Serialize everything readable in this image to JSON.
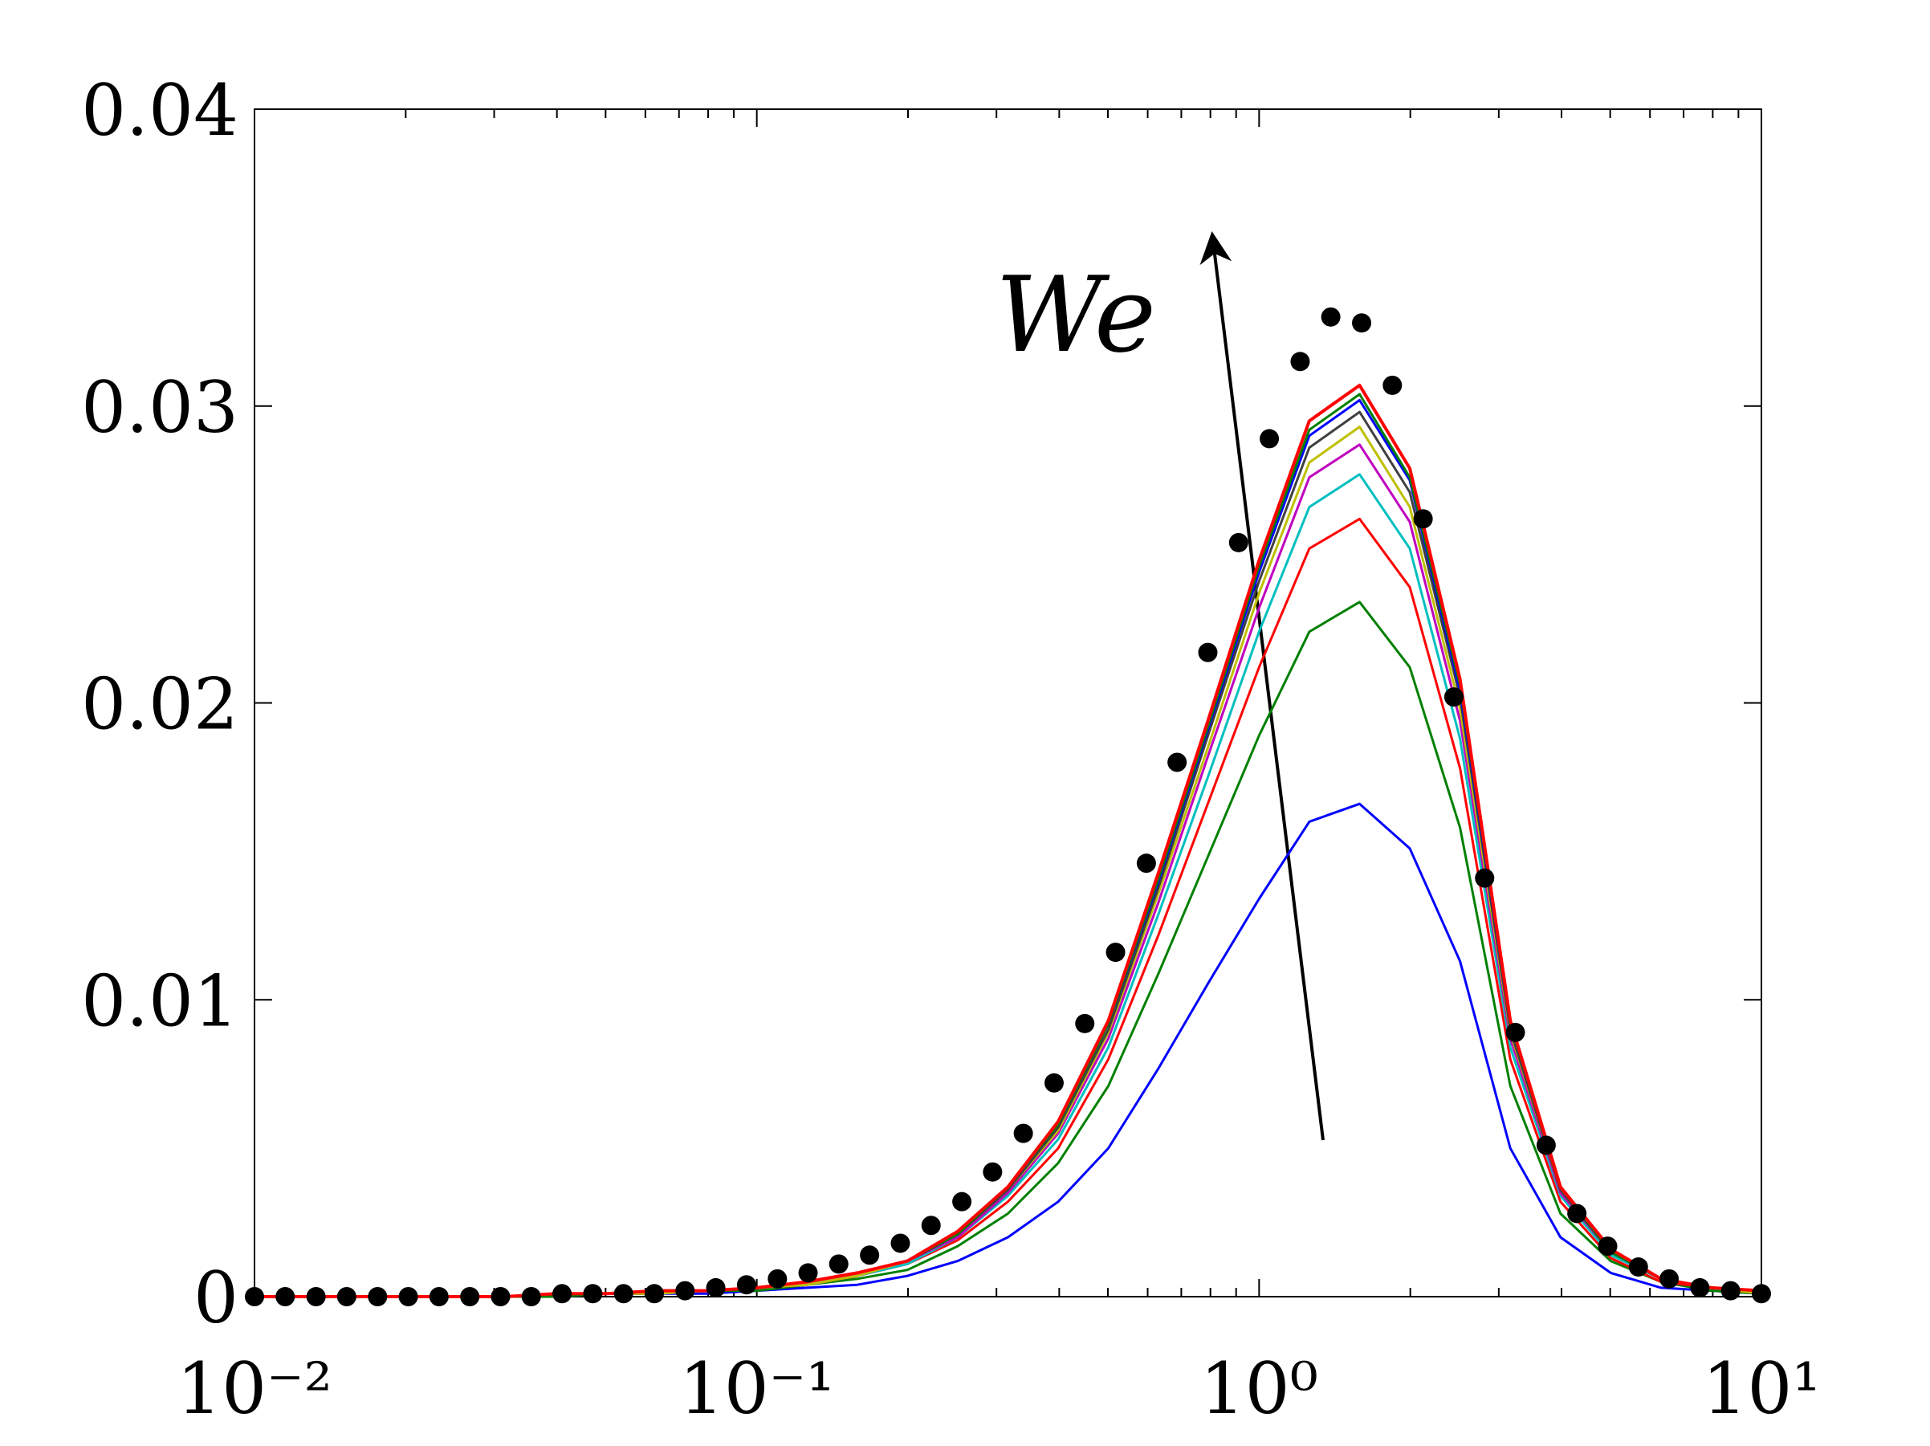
{
  "chart_data": {
    "type": "line",
    "annotations": [
      {
        "text": "We"
      }
    ],
    "xscale": "log",
    "xlim": [
      0.01,
      10
    ],
    "xticks": [
      {
        "value": 0.01,
        "label": "10⁻²"
      },
      {
        "value": 0.1,
        "label": "10⁻¹"
      },
      {
        "value": 1,
        "label": "10⁰"
      },
      {
        "value": 10,
        "label": "10¹"
      }
    ],
    "xminorticks": [
      0.02,
      0.03,
      0.04,
      0.05,
      0.06,
      0.07,
      0.08,
      0.09,
      0.2,
      0.3,
      0.4,
      0.5,
      0.6,
      0.7,
      0.8,
      0.9,
      2,
      3,
      4,
      5,
      6,
      7,
      8,
      9
    ],
    "ylim": [
      0,
      0.04
    ],
    "yticks": [
      0,
      0.01,
      0.02,
      0.03,
      0.04
    ],
    "x": [
      0.01,
      0.0126,
      0.0158,
      0.02,
      0.0251,
      0.0316,
      0.0398,
      0.0501,
      0.0631,
      0.0794,
      0.1,
      0.1259,
      0.1585,
      0.1995,
      0.2512,
      0.3162,
      0.3981,
      0.5012,
      0.631,
      0.7943,
      1,
      1.2589,
      1.5849,
      1.9953,
      2.5119,
      3.1623,
      3.9811,
      5.0119,
      6.3096,
      7.9433,
      10
    ],
    "series": [
      {
        "color": "#0000ff",
        "values": [
          0,
          0,
          0,
          0,
          0,
          0,
          0,
          0.0001,
          0.0001,
          0.0001,
          0.0002,
          0.0003,
          0.0004,
          0.0007,
          0.0012,
          0.002,
          0.0032,
          0.005,
          0.0077,
          0.0106,
          0.0134,
          0.016,
          0.0166,
          0.0151,
          0.0113,
          0.005,
          0.002,
          0.0008,
          0.0003,
          0.0002,
          0.0001
        ]
      },
      {
        "color": "#008000",
        "values": [
          0,
          0,
          0,
          0,
          0,
          0,
          0,
          0.0001,
          0.0001,
          0.0002,
          0.0002,
          0.0004,
          0.0006,
          0.0009,
          0.0017,
          0.0028,
          0.0045,
          0.0071,
          0.0109,
          0.0149,
          0.0189,
          0.0224,
          0.0234,
          0.0212,
          0.0158,
          0.0071,
          0.0028,
          0.0012,
          0.0005,
          0.0002,
          0.0001
        ]
      },
      {
        "color": "#ff0000",
        "values": [
          0,
          0,
          0,
          0,
          0,
          0,
          0.0001,
          0.0001,
          0.0001,
          0.0002,
          0.0003,
          0.0004,
          0.0007,
          0.0011,
          0.0019,
          0.0032,
          0.005,
          0.008,
          0.0122,
          0.0167,
          0.0212,
          0.0252,
          0.0262,
          0.0239,
          0.0178,
          0.008,
          0.0032,
          0.0013,
          0.0005,
          0.0003,
          0.0001
        ]
      },
      {
        "color": "#00bfbf",
        "values": [
          0,
          0,
          0,
          0,
          0,
          0,
          0.0001,
          0.0001,
          0.0001,
          0.0002,
          0.0003,
          0.0004,
          0.0007,
          0.0011,
          0.002,
          0.0034,
          0.0053,
          0.0084,
          0.0129,
          0.0176,
          0.0224,
          0.0266,
          0.0277,
          0.0252,
          0.0188,
          0.0084,
          0.0034,
          0.0014,
          0.0006,
          0.0003,
          0.0001
        ]
      },
      {
        "color": "#bf00bf",
        "values": [
          0,
          0,
          0,
          0,
          0,
          0,
          0.0001,
          0.0001,
          0.0001,
          0.0002,
          0.0003,
          0.0004,
          0.0007,
          0.0012,
          0.002,
          0.0035,
          0.0055,
          0.0087,
          0.0133,
          0.0183,
          0.0232,
          0.0276,
          0.0287,
          0.0261,
          0.0194,
          0.0087,
          0.0035,
          0.0015,
          0.0006,
          0.0003,
          0.0001
        ]
      },
      {
        "color": "#bfbf00",
        "values": [
          0,
          0,
          0,
          0,
          0,
          0,
          0.0001,
          0.0001,
          0.0001,
          0.0002,
          0.0003,
          0.0004,
          0.0007,
          0.0012,
          0.0021,
          0.0036,
          0.0056,
          0.0089,
          0.0136,
          0.0186,
          0.0237,
          0.0281,
          0.0293,
          0.0266,
          0.0198,
          0.0089,
          0.0036,
          0.0015,
          0.0006,
          0.0003,
          0.0001
        ]
      },
      {
        "color": "#404040",
        "values": [
          0,
          0,
          0,
          0,
          0,
          0,
          0.0001,
          0.0001,
          0.0002,
          0.0002,
          0.0003,
          0.0005,
          0.0008,
          0.0012,
          0.0021,
          0.0036,
          0.0057,
          0.009,
          0.0138,
          0.019,
          0.0241,
          0.0286,
          0.0298,
          0.0271,
          0.0202,
          0.009,
          0.0036,
          0.0015,
          0.0006,
          0.0003,
          0.0002
        ]
      },
      {
        "color": "#0000ff",
        "values": [
          0,
          0,
          0,
          0,
          0,
          0,
          0.0001,
          0.0001,
          0.0002,
          0.0002,
          0.0003,
          0.0005,
          0.0008,
          0.0012,
          0.0021,
          0.0037,
          0.0058,
          0.0092,
          0.014,
          0.0192,
          0.0244,
          0.029,
          0.0302,
          0.0275,
          0.0204,
          0.0092,
          0.0037,
          0.0015,
          0.0006,
          0.0003,
          0.0002
        ]
      },
      {
        "color": "#008000",
        "values": [
          0,
          0,
          0,
          0,
          0,
          0,
          0.0001,
          0.0001,
          0.0002,
          0.0002,
          0.0003,
          0.0005,
          0.0008,
          0.0012,
          0.0021,
          0.0037,
          0.0058,
          0.0092,
          0.0141,
          0.0193,
          0.0246,
          0.0292,
          0.0304,
          0.0276,
          0.0206,
          0.0092,
          0.0037,
          0.0015,
          0.0006,
          0.0003,
          0.0002
        ]
      },
      {
        "color": "#ff0000",
        "values": [
          0,
          0,
          0,
          0,
          0,
          0,
          0.0001,
          0.0001,
          0.0002,
          0.0002,
          0.0003,
          0.0005,
          0.0008,
          0.0012,
          0.0022,
          0.0037,
          0.0059,
          0.0093,
          0.0143,
          0.0195,
          0.0248,
          0.0295,
          0.0307,
          0.0279,
          0.0208,
          0.0093,
          0.0037,
          0.0016,
          0.0006,
          0.0003,
          0.0002
        ]
      },
      {
        "color": "#000000",
        "marker": "dot",
        "x": [
          0.01,
          0.01151,
          0.01326,
          0.01526,
          0.01758,
          0.02024,
          0.0233,
          0.02683,
          0.03089,
          0.03556,
          0.04095,
          0.04715,
          0.05429,
          0.06251,
          0.07197,
          0.08286,
          0.09541,
          0.1099,
          0.1265,
          0.1456,
          0.1677,
          0.1931,
          0.2223,
          0.256,
          0.2947,
          0.3393,
          0.3907,
          0.4498,
          0.5179,
          0.5964,
          0.6866,
          0.7906,
          0.9103,
          1.048,
          1.207,
          1.389,
          1.6,
          1.842,
          2.121,
          2.442,
          2.812,
          3.237,
          3.728,
          4.292,
          4.942,
          5.69,
          6.551,
          7.543,
          8.685,
          10
        ],
        "values": [
          0,
          0,
          0,
          0,
          0,
          0,
          0,
          0,
          0,
          0,
          0.0001,
          0.0001,
          0.0001,
          0.0001,
          0.0002,
          0.0003,
          0.0004,
          0.0006,
          0.0008,
          0.0011,
          0.0014,
          0.0018,
          0.0024,
          0.0032,
          0.0042,
          0.0055,
          0.0072,
          0.0092,
          0.0116,
          0.0146,
          0.018,
          0.0217,
          0.0254,
          0.0289,
          0.0315,
          0.033,
          0.0328,
          0.0307,
          0.0262,
          0.0202,
          0.0141,
          0.0089,
          0.0051,
          0.0028,
          0.0017,
          0.001,
          0.0006,
          0.0003,
          0.0002,
          0.0001
        ]
      }
    ]
  }
}
